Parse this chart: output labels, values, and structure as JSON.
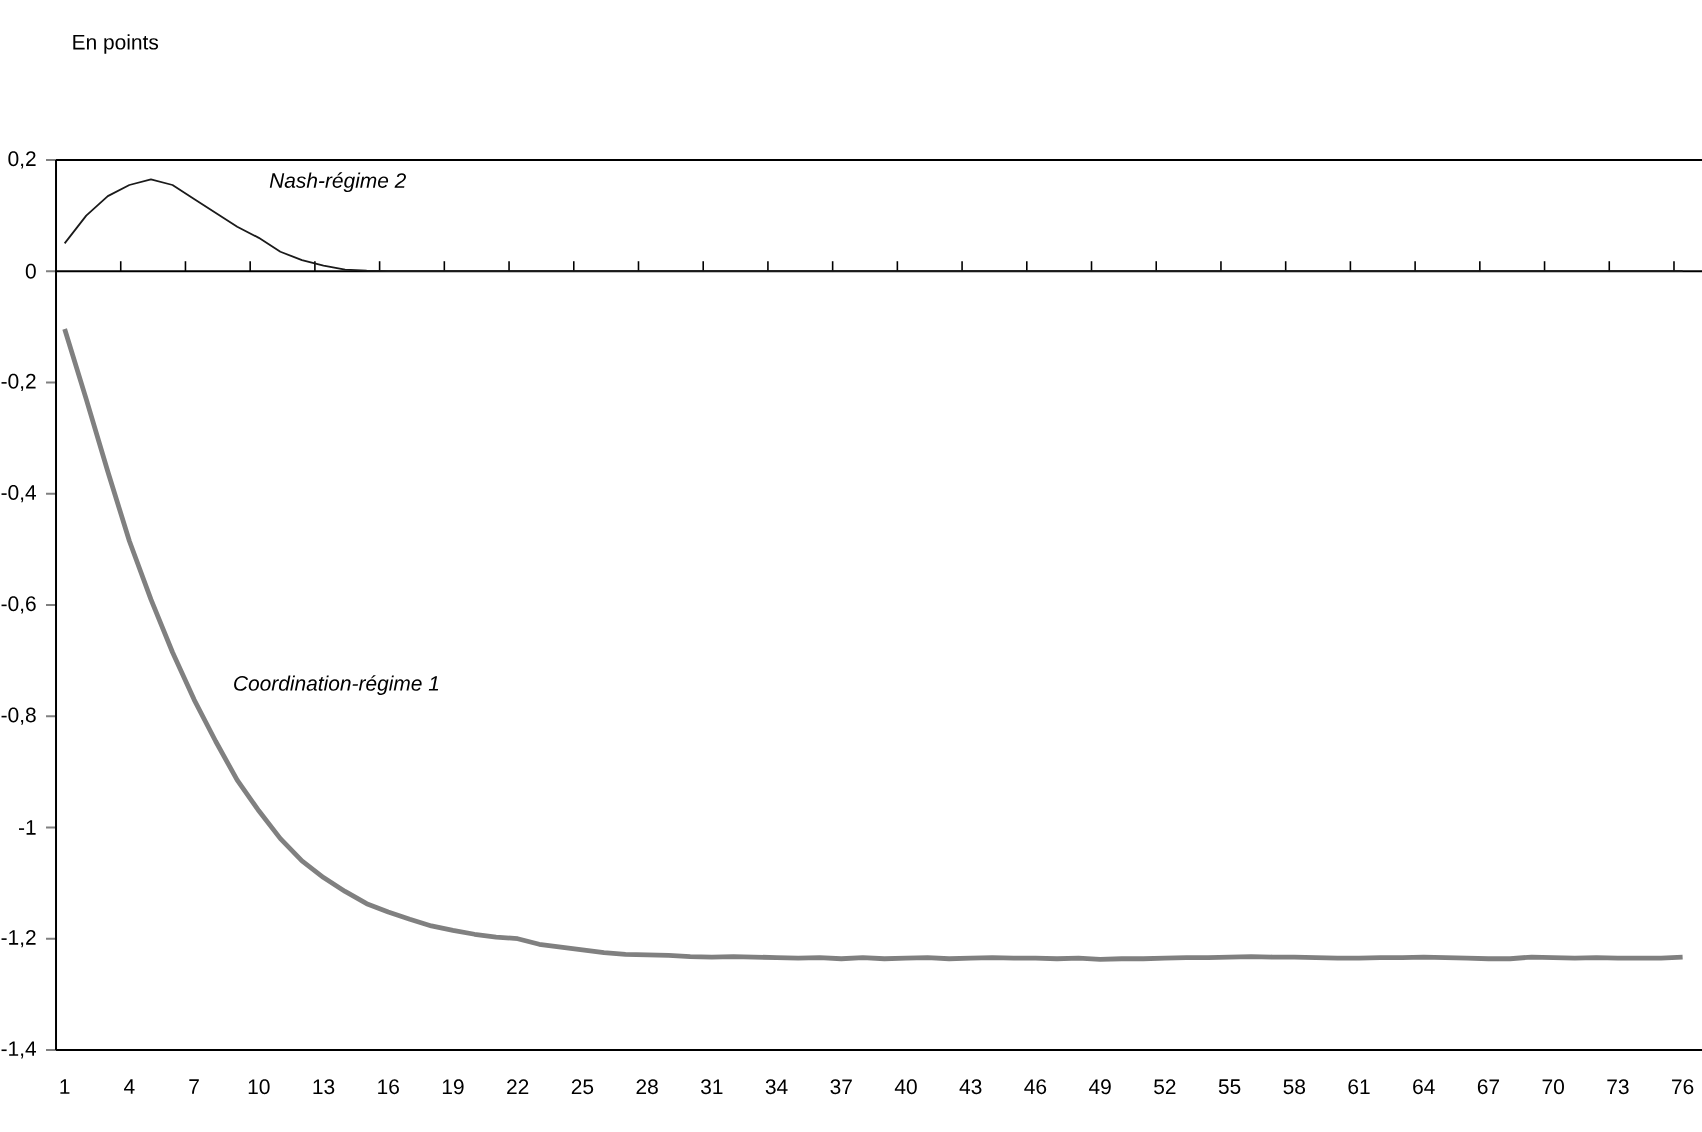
{
  "chart_data": {
    "type": "line",
    "ylabel": "En points",
    "categories": [
      "1",
      null,
      null,
      "4",
      null,
      null,
      "7",
      null,
      null,
      "10",
      null,
      null,
      "13",
      null,
      null,
      "16",
      null,
      null,
      "19",
      null,
      null,
      "22",
      null,
      null,
      "25",
      null,
      null,
      "28",
      null,
      null,
      "31",
      null,
      null,
      "34",
      null,
      null,
      "37",
      null,
      null,
      "40",
      null,
      null,
      "43",
      null,
      null,
      "46",
      null,
      null,
      "49",
      null,
      null,
      "52",
      null,
      null,
      "55",
      null,
      null,
      "58",
      null,
      null,
      "61",
      null,
      null,
      "64",
      null,
      null,
      "67",
      null,
      null,
      "70",
      null,
      null,
      "73",
      null,
      null,
      "76"
    ],
    "series": [
      {
        "name": "Nash-régime 2",
        "color": "#1a1a1a",
        "values": [
          0.05,
          0.1,
          0.135,
          0.155,
          0.165,
          0.155,
          0.13,
          0.105,
          0.08,
          0.06,
          0.035,
          0.02,
          0.01,
          0.003,
          0.001,
          0,
          0,
          0,
          0,
          0,
          0,
          0,
          0,
          0,
          0,
          0,
          0,
          0,
          0,
          0,
          0,
          0,
          0,
          0,
          0,
          0,
          0,
          0,
          0,
          0,
          0,
          0,
          0,
          0,
          0,
          0,
          0,
          0,
          0,
          0,
          0,
          0,
          0,
          0,
          0,
          0,
          0,
          0,
          0,
          0,
          0,
          0,
          0,
          0,
          0,
          0,
          0,
          0,
          0,
          0,
          0,
          0,
          0,
          0,
          0,
          0
        ]
      },
      {
        "name": "Coordination-régime 1",
        "color": "#808080",
        "values": [
          -0.104,
          -0.23,
          -0.36,
          -0.485,
          -0.59,
          -0.685,
          -0.77,
          -0.845,
          -0.915,
          -0.97,
          -1.02,
          -1.06,
          -1.09,
          -1.115,
          -1.137,
          -1.152,
          -1.165,
          -1.177,
          -1.185,
          -1.192,
          -1.197,
          -1.2,
          -1.21,
          -1.215,
          -1.22,
          -1.225,
          -1.228,
          -1.229,
          -1.23,
          -1.232,
          -1.233,
          -1.232,
          -1.233,
          -1.234,
          -1.235,
          -1.234,
          -1.236,
          -1.234,
          -1.236,
          -1.235,
          -1.234,
          -1.236,
          -1.235,
          -1.234,
          -1.235,
          -1.235,
          -1.236,
          -1.235,
          -1.237,
          -1.236,
          -1.236,
          -1.235,
          -1.234,
          -1.234,
          -1.233,
          -1.232,
          -1.233,
          -1.233,
          -1.234,
          -1.235,
          -1.235,
          -1.234,
          -1.234,
          -1.233,
          -1.234,
          -1.235,
          -1.236,
          -1.236,
          -1.233,
          -1.234,
          -1.235,
          -1.234,
          -1.235,
          -1.235,
          -1.235,
          -1.233
        ]
      }
    ],
    "ylim": [
      -1.4,
      0.2
    ],
    "yticks": [
      {
        "value": 0.2,
        "label": "0,2"
      },
      0,
      {
        "value": -0.2,
        "label": "-0,2"
      },
      {
        "value": -0.4,
        "label": "-0,4"
      },
      {
        "value": -0.6,
        "label": "-0,6"
      },
      {
        "value": -0.8,
        "label": "-0,8"
      },
      -1,
      {
        "value": -1.2,
        "label": "-1,2"
      },
      {
        "value": -1.4,
        "label": "-1,4"
      }
    ],
    "legend": false,
    "marker": "none",
    "line_style": "solid"
  }
}
